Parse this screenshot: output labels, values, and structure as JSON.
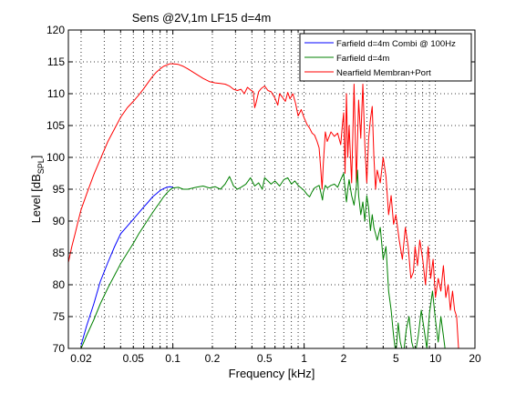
{
  "chart_data": {
    "type": "line",
    "title": "Sens @2V,1m LF15 d=4m",
    "xlabel": "Frequency [kHz]",
    "ylabel": "Level [dB",
    "ylabel_sub": "SPL",
    "ylabel_end": "]",
    "xscale": "log",
    "xlim": [
      0.016,
      20
    ],
    "ylim": [
      70,
      120
    ],
    "grid": true,
    "legend_position": "top-right",
    "x_ticks": [
      {
        "value": 0.02,
        "label": "0.02"
      },
      {
        "value": 0.05,
        "label": "0.05"
      },
      {
        "value": 0.1,
        "label": "0.1"
      },
      {
        "value": 0.2,
        "label": "0.2"
      },
      {
        "value": 0.5,
        "label": "0.5"
      },
      {
        "value": 1,
        "label": "1"
      },
      {
        "value": 2,
        "label": "2"
      },
      {
        "value": 5,
        "label": "5"
      },
      {
        "value": 10,
        "label": "10"
      },
      {
        "value": 20,
        "label": "20"
      }
    ],
    "y_ticks": [
      {
        "value": 70,
        "label": "70"
      },
      {
        "value": 75,
        "label": "75"
      },
      {
        "value": 80,
        "label": "80"
      },
      {
        "value": 85,
        "label": "85"
      },
      {
        "value": 90,
        "label": "90"
      },
      {
        "value": 95,
        "label": "95"
      },
      {
        "value": 100,
        "label": "100"
      },
      {
        "value": 105,
        "label": "105"
      },
      {
        "value": 110,
        "label": "110"
      },
      {
        "value": 115,
        "label": "115"
      },
      {
        "value": 120,
        "label": "120"
      }
    ],
    "series": [
      {
        "name": "Farfield d=4m Combi @ 100Hz",
        "color": "#0000ff",
        "points": [
          [
            0.02,
            70.5
          ],
          [
            0.022,
            73.5
          ],
          [
            0.025,
            77
          ],
          [
            0.028,
            80.5
          ],
          [
            0.032,
            83.5
          ],
          [
            0.036,
            86
          ],
          [
            0.04,
            88
          ],
          [
            0.045,
            89.2
          ],
          [
            0.05,
            90.3
          ],
          [
            0.055,
            91.3
          ],
          [
            0.06,
            92.2
          ],
          [
            0.065,
            93
          ],
          [
            0.07,
            93.8
          ],
          [
            0.075,
            94.3
          ],
          [
            0.08,
            94.8
          ],
          [
            0.085,
            95.1
          ],
          [
            0.09,
            95.3
          ],
          [
            0.095,
            95.4
          ],
          [
            0.1,
            95.3
          ]
        ]
      },
      {
        "name": "Farfield d=4m",
        "color": "#008000",
        "points": [
          [
            0.02,
            70
          ],
          [
            0.022,
            72
          ],
          [
            0.025,
            74.5
          ],
          [
            0.028,
            77
          ],
          [
            0.032,
            79.5
          ],
          [
            0.036,
            81.5
          ],
          [
            0.04,
            83.3
          ],
          [
            0.045,
            85
          ],
          [
            0.05,
            86.5
          ],
          [
            0.055,
            88
          ],
          [
            0.06,
            89.2
          ],
          [
            0.065,
            90.3
          ],
          [
            0.07,
            91.3
          ],
          [
            0.075,
            92.2
          ],
          [
            0.08,
            93
          ],
          [
            0.085,
            93.8
          ],
          [
            0.09,
            94.4
          ],
          [
            0.095,
            94.9
          ],
          [
            0.1,
            95.2
          ],
          [
            0.11,
            95.3
          ],
          [
            0.12,
            95
          ],
          [
            0.13,
            95
          ],
          [
            0.15,
            95.3
          ],
          [
            0.17,
            95.5
          ],
          [
            0.19,
            95.2
          ],
          [
            0.21,
            95.4
          ],
          [
            0.23,
            95
          ],
          [
            0.25,
            95.8
          ],
          [
            0.27,
            97
          ],
          [
            0.29,
            95.5
          ],
          [
            0.31,
            95
          ],
          [
            0.33,
            95.3
          ],
          [
            0.36,
            95.8
          ],
          [
            0.39,
            96.8
          ],
          [
            0.42,
            95.5
          ],
          [
            0.45,
            96
          ],
          [
            0.48,
            95
          ],
          [
            0.5,
            96.8
          ],
          [
            0.53,
            96.3
          ],
          [
            0.56,
            95.8
          ],
          [
            0.6,
            96.3
          ],
          [
            0.65,
            95.5
          ],
          [
            0.7,
            96.5
          ],
          [
            0.75,
            96.8
          ],
          [
            0.8,
            95.8
          ],
          [
            0.85,
            96.3
          ],
          [
            0.9,
            95.6
          ],
          [
            0.95,
            95.2
          ],
          [
            1.0,
            94.8
          ],
          [
            1.05,
            94.2
          ],
          [
            1.1,
            93.8
          ],
          [
            1.15,
            94.6
          ],
          [
            1.2,
            95.2
          ],
          [
            1.3,
            95.6
          ],
          [
            1.35,
            94.2
          ],
          [
            1.38,
            93.3
          ],
          [
            1.4,
            94.5
          ],
          [
            1.45,
            95.6
          ],
          [
            1.5,
            95.2
          ],
          [
            1.6,
            95.6
          ],
          [
            1.7,
            95.8
          ],
          [
            1.8,
            95.3
          ],
          [
            1.9,
            96.5
          ],
          [
            2.0,
            97.5
          ],
          [
            2.05,
            95
          ],
          [
            2.1,
            93
          ],
          [
            2.15,
            95
          ],
          [
            2.2,
            96.5
          ],
          [
            2.3,
            94
          ],
          [
            2.4,
            92.5
          ],
          [
            2.5,
            95.5
          ],
          [
            2.55,
            98
          ],
          [
            2.6,
            94
          ],
          [
            2.7,
            91
          ],
          [
            2.8,
            93
          ],
          [
            2.9,
            90
          ],
          [
            3.0,
            94
          ],
          [
            3.1,
            92
          ],
          [
            3.2,
            88.5
          ],
          [
            3.3,
            91
          ],
          [
            3.4,
            89
          ],
          [
            3.6,
            87
          ],
          [
            3.8,
            89
          ],
          [
            4.0,
            84
          ],
          [
            4.2,
            86
          ],
          [
            4.4,
            79
          ],
          [
            4.6,
            76
          ],
          [
            4.8,
            72
          ],
          [
            5.0,
            69
          ],
          [
            5.2,
            74
          ],
          [
            5.4,
            71
          ],
          [
            5.7,
            69
          ],
          [
            6.0,
            73
          ],
          [
            6.3,
            75
          ],
          [
            6.6,
            71
          ],
          [
            7.0,
            69
          ],
          [
            7.4,
            72
          ],
          [
            7.8,
            76
          ],
          [
            8.2,
            73
          ],
          [
            8.6,
            70
          ],
          [
            9.0,
            75.5
          ],
          [
            9.5,
            79
          ],
          [
            10.0,
            74.5
          ],
          [
            10.5,
            71
          ],
          [
            11.0,
            75
          ],
          [
            11.5,
            72
          ],
          [
            12.0,
            69
          ]
        ]
      },
      {
        "name": "Nearfield Membran+Port",
        "color": "#ff0000",
        "points": [
          [
            0.016,
            83.5
          ],
          [
            0.017,
            86
          ],
          [
            0.018,
            88
          ],
          [
            0.019,
            90
          ],
          [
            0.02,
            91.8
          ],
          [
            0.022,
            94.2
          ],
          [
            0.025,
            97.3
          ],
          [
            0.028,
            99.7
          ],
          [
            0.032,
            102.5
          ],
          [
            0.036,
            104.5
          ],
          [
            0.04,
            106.3
          ],
          [
            0.045,
            107.8
          ],
          [
            0.05,
            108.8
          ],
          [
            0.055,
            109.8
          ],
          [
            0.06,
            110.8
          ],
          [
            0.065,
            111.8
          ],
          [
            0.07,
            112.7
          ],
          [
            0.075,
            113.4
          ],
          [
            0.08,
            113.9
          ],
          [
            0.085,
            114.3
          ],
          [
            0.09,
            114.5
          ],
          [
            0.095,
            114.7
          ],
          [
            0.1,
            114.7
          ],
          [
            0.11,
            114.6
          ],
          [
            0.12,
            114.3
          ],
          [
            0.13,
            113.9
          ],
          [
            0.15,
            113.1
          ],
          [
            0.17,
            112.4
          ],
          [
            0.19,
            111.9
          ],
          [
            0.21,
            111.7
          ],
          [
            0.23,
            111.6
          ],
          [
            0.25,
            111.5
          ],
          [
            0.27,
            111.2
          ],
          [
            0.29,
            110.7
          ],
          [
            0.31,
            110.5
          ],
          [
            0.33,
            110.7
          ],
          [
            0.35,
            110
          ],
          [
            0.37,
            111
          ],
          [
            0.39,
            110.6
          ],
          [
            0.41,
            110.3
          ],
          [
            0.42,
            107.8
          ],
          [
            0.43,
            108.5
          ],
          [
            0.45,
            110.3
          ],
          [
            0.47,
            110.8
          ],
          [
            0.5,
            111.2
          ],
          [
            0.53,
            110.5
          ],
          [
            0.56,
            110.3
          ],
          [
            0.6,
            109.3
          ],
          [
            0.63,
            108.2
          ],
          [
            0.65,
            110
          ],
          [
            0.68,
            109.5
          ],
          [
            0.72,
            108.8
          ],
          [
            0.75,
            110.2
          ],
          [
            0.78,
            109.2
          ],
          [
            0.82,
            110
          ],
          [
            0.86,
            108.5
          ],
          [
            0.9,
            106.5
          ],
          [
            0.95,
            107.5
          ],
          [
            1.0,
            106.2
          ],
          [
            1.05,
            105.2
          ],
          [
            1.1,
            104.6
          ],
          [
            1.15,
            103.8
          ],
          [
            1.2,
            103.5
          ],
          [
            1.25,
            102.6
          ],
          [
            1.3,
            101.5
          ],
          [
            1.34,
            98
          ],
          [
            1.37,
            95
          ],
          [
            1.4,
            99
          ],
          [
            1.45,
            104
          ],
          [
            1.5,
            102.5
          ],
          [
            1.6,
            104
          ],
          [
            1.7,
            103.3
          ],
          [
            1.8,
            103.8
          ],
          [
            1.9,
            102
          ],
          [
            1.95,
            104.8
          ],
          [
            2.0,
            107
          ],
          [
            2.05,
            97.5
          ],
          [
            2.1,
            110
          ],
          [
            2.15,
            100
          ],
          [
            2.2,
            105
          ],
          [
            2.3,
            96
          ],
          [
            2.4,
            111.5
          ],
          [
            2.5,
            96
          ],
          [
            2.6,
            109
          ],
          [
            2.7,
            103
          ],
          [
            2.8,
            111.5
          ],
          [
            2.9,
            102
          ],
          [
            3.0,
            96
          ],
          [
            3.1,
            103
          ],
          [
            3.2,
            106
          ],
          [
            3.3,
            108
          ],
          [
            3.4,
            100
          ],
          [
            3.5,
            95
          ],
          [
            3.6,
            98
          ],
          [
            3.8,
            96
          ],
          [
            4.0,
            100
          ],
          [
            4.2,
            97
          ],
          [
            4.4,
            91
          ],
          [
            4.6,
            94
          ],
          [
            4.8,
            89.5
          ],
          [
            5.0,
            91
          ],
          [
            5.3,
            87
          ],
          [
            5.6,
            84
          ],
          [
            5.9,
            89
          ],
          [
            6.2,
            86
          ],
          [
            6.5,
            81
          ],
          [
            6.8,
            82
          ],
          [
            7.0,
            86
          ],
          [
            7.3,
            83
          ],
          [
            7.6,
            87
          ],
          [
            8.0,
            84
          ],
          [
            8.4,
            80
          ],
          [
            8.8,
            86
          ],
          [
            9.2,
            81
          ],
          [
            9.6,
            84
          ],
          [
            10.0,
            78
          ],
          [
            10.5,
            81
          ],
          [
            11.0,
            79
          ],
          [
            11.5,
            83
          ],
          [
            12.0,
            78
          ],
          [
            12.5,
            80
          ],
          [
            13.0,
            76
          ],
          [
            13.5,
            79
          ],
          [
            14.0,
            76
          ],
          [
            14.5,
            75
          ],
          [
            15.0,
            70
          ]
        ]
      }
    ]
  }
}
